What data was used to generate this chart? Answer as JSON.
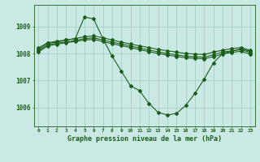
{
  "bg_color": "#cbe9e4",
  "grid_color": "#a0ccc0",
  "line_color": "#1a5e1a",
  "xlabel": "Graphe pression niveau de la mer (hPa)",
  "yticks": [
    1006,
    1007,
    1008,
    1009
  ],
  "xticks": [
    0,
    1,
    2,
    3,
    4,
    5,
    6,
    7,
    8,
    9,
    10,
    11,
    12,
    13,
    14,
    15,
    16,
    17,
    18,
    19,
    20,
    21,
    22,
    23
  ],
  "xlim": [
    -0.5,
    23.5
  ],
  "ylim": [
    1005.3,
    1009.8
  ],
  "series": {
    "line_flat1": [
      1008.2,
      1008.4,
      1008.45,
      1008.5,
      1008.55,
      1008.62,
      1008.65,
      1008.58,
      1008.5,
      1008.42,
      1008.35,
      1008.28,
      1008.22,
      1008.15,
      1008.1,
      1008.05,
      1008.0,
      1007.98,
      1007.96,
      1008.05,
      1008.12,
      1008.18,
      1008.22,
      1008.12
    ],
    "line_flat2": [
      1008.1,
      1008.32,
      1008.38,
      1008.43,
      1008.48,
      1008.55,
      1008.58,
      1008.5,
      1008.42,
      1008.35,
      1008.28,
      1008.2,
      1008.13,
      1008.06,
      1008.0,
      1007.95,
      1007.9,
      1007.88,
      1007.86,
      1007.95,
      1008.05,
      1008.1,
      1008.14,
      1008.04
    ],
    "line_flat3": [
      1008.05,
      1008.28,
      1008.34,
      1008.4,
      1008.44,
      1008.5,
      1008.52,
      1008.44,
      1008.36,
      1008.29,
      1008.22,
      1008.14,
      1008.07,
      1008.0,
      1007.94,
      1007.89,
      1007.84,
      1007.82,
      1007.8,
      1007.88,
      1007.98,
      1008.04,
      1008.08,
      1007.98
    ],
    "line_dip": [
      1008.15,
      1008.38,
      1008.42,
      1008.5,
      1008.55,
      1009.35,
      1009.28,
      1008.55,
      1007.9,
      1007.35,
      1006.8,
      1006.62,
      1006.15,
      1005.82,
      1005.72,
      1005.78,
      1006.08,
      1006.52,
      1007.05,
      1007.65,
      1008.0,
      1008.08,
      1008.18,
      1008.08
    ]
  }
}
